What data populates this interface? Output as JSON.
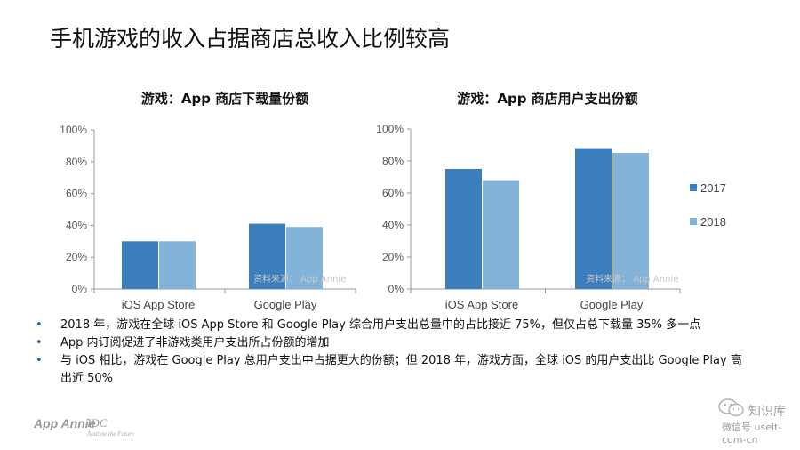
{
  "slide": {
    "title": "手机游戏的收入占据商店总收入比例较高"
  },
  "chart_data": [
    {
      "type": "bar",
      "title": "游戏：App 商店下载量份额",
      "categories": [
        "iOS App Store",
        "Google Play"
      ],
      "series": [
        {
          "name": "2017",
          "values": [
            30,
            41
          ]
        },
        {
          "name": "2018",
          "values": [
            30,
            39
          ]
        }
      ],
      "ylim": [
        0,
        100
      ],
      "yticks": [
        "0%",
        "20%",
        "40%",
        "60%",
        "80%",
        "100%"
      ],
      "ytick_values": [
        0,
        20,
        40,
        60,
        80,
        100
      ],
      "source_note": "资料来源： App Annie",
      "colors": [
        "#3a7ebb",
        "#84b3da"
      ],
      "grid": false,
      "legend": "none"
    },
    {
      "type": "bar",
      "title": "游戏：App 商店用户支出份额",
      "categories": [
        "iOS App Store",
        "Google Play"
      ],
      "series": [
        {
          "name": "2017",
          "values": [
            75,
            88
          ]
        },
        {
          "name": "2018",
          "values": [
            68,
            85
          ]
        }
      ],
      "ylim": [
        0,
        100
      ],
      "yticks": [
        "0%",
        "20%",
        "40%",
        "60%",
        "80%",
        "100%"
      ],
      "ytick_values": [
        0,
        20,
        40,
        60,
        80,
        100
      ],
      "source_note": "资料来源： App Annie",
      "colors": [
        "#3a7ebb",
        "#84b3da"
      ],
      "grid": false,
      "legend": "right"
    }
  ],
  "bullets": [
    "2018 年，游戏在全球 iOS App Store 和 Google Play 综合用户支出总量中的占比接近 75%，但仅占总下载量 35% 多一点",
    "App 内订阅促进了非游戏类用户支出所占份额的增加",
    "与 iOS 相比，游戏在 Google Play 总用户支出中占据更大的份额；但 2018 年，游戏方面，全球 iOS 的用户支出比 Google Play 高出近 50%"
  ],
  "footer": {
    "logo_appannie": "App Annie",
    "logo_idc": "IDC",
    "logo_idc_tagline": "Analyze the Future"
  },
  "watermark": {
    "brand": "知识库",
    "account": "微信号 useit-com-cn",
    "icon": "wechat-icon"
  }
}
